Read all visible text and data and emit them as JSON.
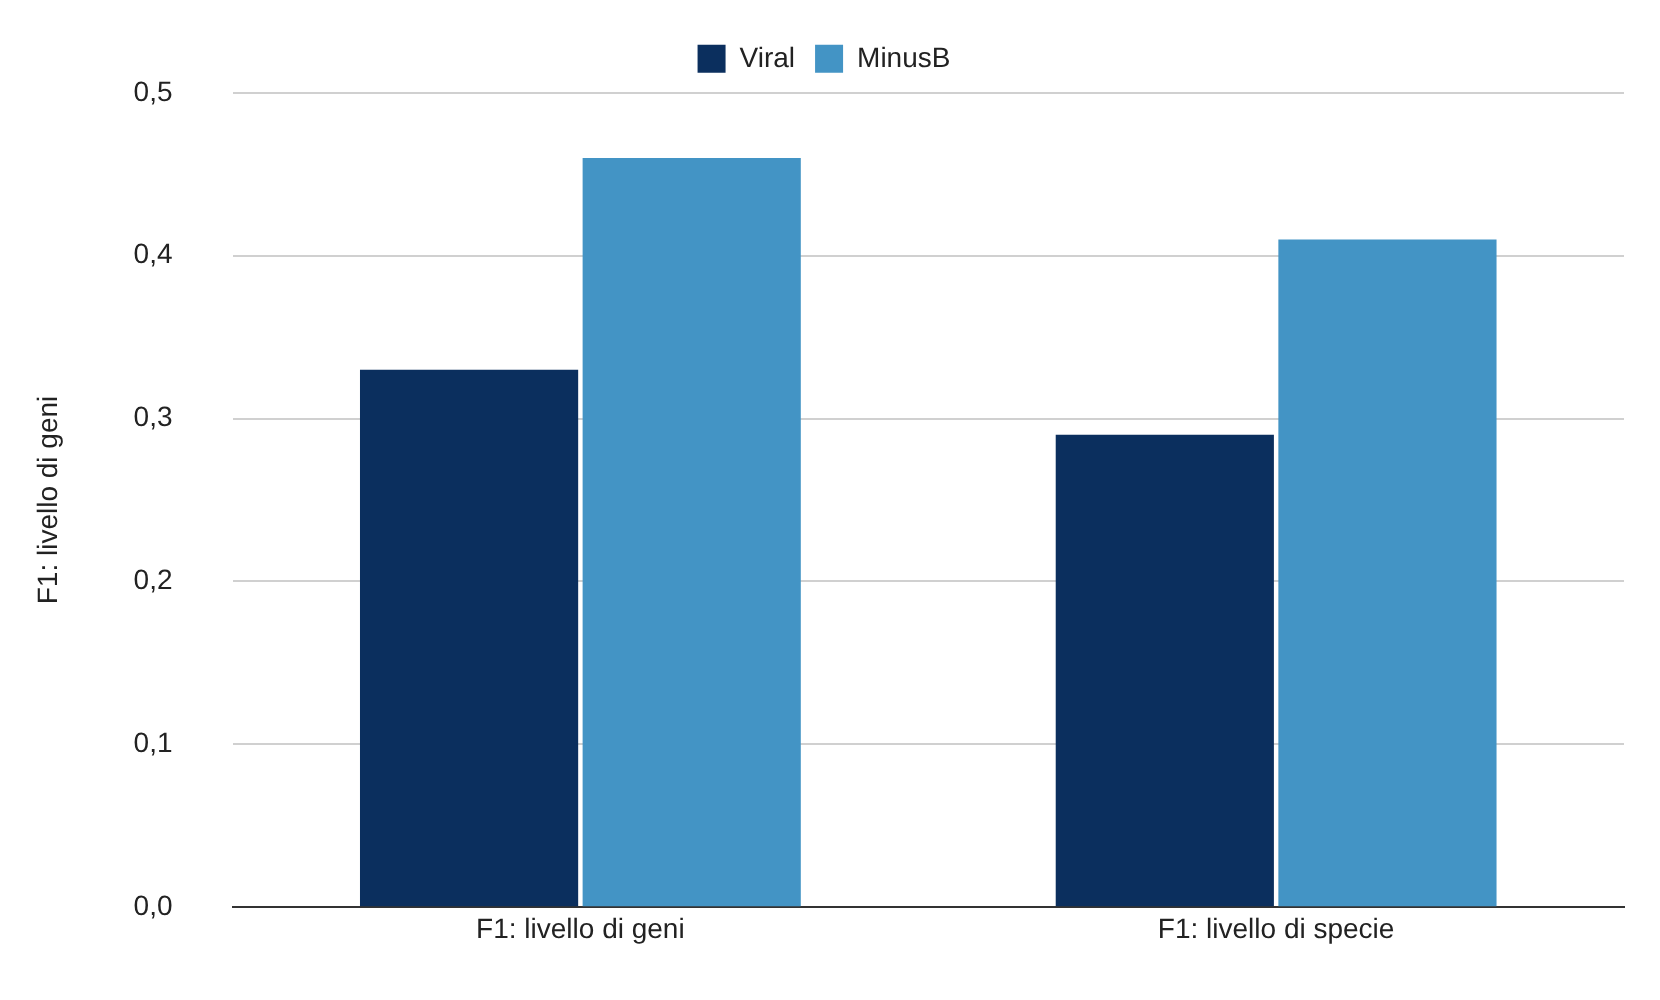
{
  "chart_data": {
    "type": "bar",
    "ylabel": "F1: livello di geni",
    "categories": [
      "F1: livello di geni",
      "F1: livello di specie"
    ],
    "series": [
      {
        "name": "Viral",
        "color": "#0b2f5e",
        "values": [
          0.33,
          0.29
        ]
      },
      {
        "name": "MinusB",
        "color": "#4394c5",
        "values": [
          0.46,
          0.41
        ]
      }
    ],
    "ylim": [
      0,
      0.5
    ],
    "yticks": [
      {
        "value": 0,
        "label": "0,0"
      },
      {
        "value": 0.1,
        "label": "0,1"
      },
      {
        "value": 0.2,
        "label": "0,2"
      },
      {
        "value": 0.3,
        "label": "0,3"
      },
      {
        "value": 0.4,
        "label": "0,4"
      },
      {
        "value": 0.5,
        "label": "0,5"
      }
    ],
    "grid": "y",
    "legend": "top"
  }
}
